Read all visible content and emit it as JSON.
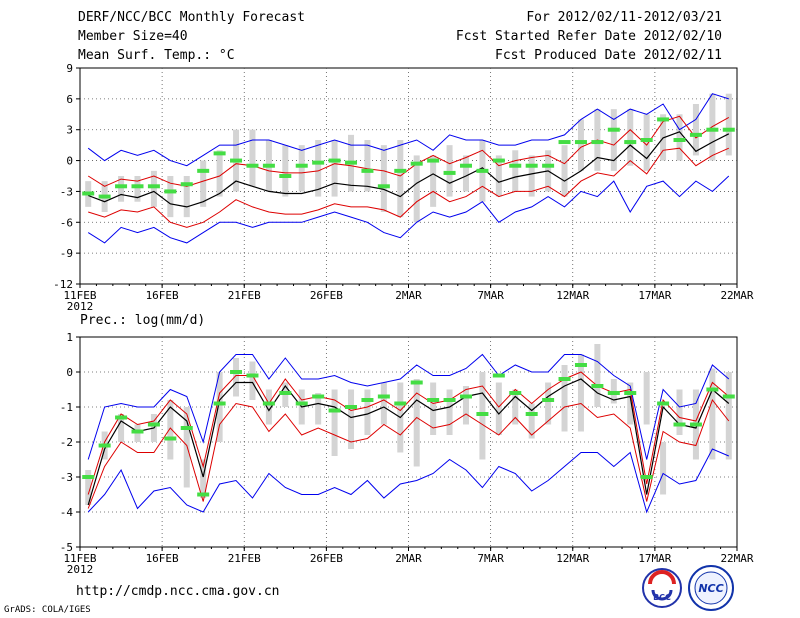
{
  "header": {
    "title": "DERF/NCC/BCC Monthly Forecast",
    "member_size": "Member Size=40",
    "variable": "Mean Surf. Temp.: °C",
    "period": "For 2012/02/11-2012/03/21",
    "start_date": "Fcst Started Refer Date 2012/02/10",
    "produced_date": "Fcst Produced Date 2012/02/11"
  },
  "footer": {
    "url": "http://cmdp.ncc.cma.gov.cn",
    "credit": "GrADS: COLA/IGES",
    "logo1_text": "BCC",
    "logo2_text": "NCC"
  },
  "colors": {
    "bar": "#d4d4d4",
    "green": "#44dd44",
    "mean": "#000000",
    "band": "#dd0000",
    "envelope": "#0000ee",
    "grid": "#555555"
  },
  "chart_data": [
    {
      "type": "line",
      "title": "Mean Surf. Temp.: °C",
      "x_ticks": [
        "11FEB",
        "16FEB",
        "21FEB",
        "26FEB",
        "2MAR",
        "7MAR",
        "12MAR",
        "17MAR",
        "22MAR"
      ],
      "x_year_label": "2012",
      "y_ticks": [
        "9",
        "6",
        "3",
        "0",
        "-3",
        "-6",
        "-9",
        "-12"
      ],
      "ylim": [
        -12,
        9
      ],
      "x": [
        1,
        2,
        3,
        4,
        5,
        6,
        7,
        8,
        9,
        10,
        11,
        12,
        13,
        14,
        15,
        16,
        17,
        18,
        19,
        20,
        21,
        22,
        23,
        24,
        25,
        26,
        27,
        28,
        29,
        30,
        31,
        32,
        33,
        34,
        35,
        36,
        37,
        38,
        39,
        40
      ],
      "bar_low": [
        -4.5,
        -5,
        -4,
        -4,
        -4.5,
        -5.5,
        -5.5,
        -4.5,
        -3.5,
        -3,
        -2.5,
        -3,
        -3.5,
        -3,
        -3.5,
        -3.5,
        -3,
        -3,
        -5,
        -5.5,
        -6,
        -4.5,
        -3.5,
        -3,
        -4,
        -3.5,
        -3,
        -3.5,
        -3,
        -3.5,
        -1,
        -1,
        -1,
        -0.5,
        -1,
        0,
        0,
        0.5,
        0,
        0.5
      ],
      "bar_high": [
        -2,
        -2,
        -1.5,
        -1.5,
        -1,
        -1.5,
        -1.5,
        0,
        1,
        3,
        3,
        2,
        1.5,
        1.5,
        2,
        2,
        2.5,
        2,
        1.5,
        2,
        0.5,
        0.5,
        1.5,
        0.5,
        2,
        0.5,
        1,
        0.5,
        1,
        1.5,
        4,
        5,
        5,
        5,
        4.5,
        4.5,
        4.5,
        5.5,
        6.5,
        6.5
      ],
      "green": [
        -3.2,
        -3.5,
        -2.5,
        -2.5,
        -2.5,
        -3,
        -2.3,
        -1,
        0.7,
        0,
        -0.5,
        -0.5,
        -1.5,
        -0.5,
        -0.2,
        0,
        -0.2,
        -1,
        -2.5,
        -1,
        -0.3,
        0,
        -1.2,
        -0.5,
        -1,
        0,
        -0.5,
        -0.5,
        -0.5,
        1.8,
        1.8,
        1.8,
        3,
        1.8,
        2,
        4,
        2,
        2.5,
        3,
        3
      ],
      "mean": [
        -3.4,
        -4,
        -3.3,
        -3.6,
        -3,
        -4.2,
        -4.5,
        -4,
        -3.2,
        -2,
        -2.5,
        -3,
        -3.2,
        -3.2,
        -2.8,
        -2.2,
        -2.4,
        -2.5,
        -2.8,
        -3.5,
        -2.2,
        -1.3,
        -2.2,
        -1.5,
        -0.7,
        -2.1,
        -1.6,
        -1.3,
        -1,
        -2,
        -1,
        0.3,
        0,
        1.5,
        0.2,
        2.2,
        2.8,
        0.9,
        1.8,
        2.6
      ],
      "upper": [
        -1.5,
        -2.5,
        -1.8,
        -2,
        -1.5,
        -2.2,
        -2.5,
        -2,
        -1.5,
        -0.3,
        -0.5,
        -1,
        -1.2,
        -1.2,
        -1,
        -0.3,
        -0.5,
        -0.8,
        -1,
        -1.5,
        -0.3,
        0.5,
        -0.3,
        0.3,
        1,
        -0.5,
        0,
        0.3,
        0.5,
        -0.3,
        1.3,
        2,
        1.5,
        3,
        1.5,
        3.8,
        4.3,
        2.2,
        3.3,
        4.2
      ],
      "lower": [
        -5,
        -5.5,
        -4.8,
        -5,
        -4.5,
        -6,
        -6.5,
        -6,
        -5,
        -3.8,
        -4.5,
        -5,
        -5.2,
        -5.2,
        -4.8,
        -4.2,
        -4.5,
        -4.5,
        -4.8,
        -5.5,
        -4,
        -3,
        -4,
        -3.5,
        -2.5,
        -3.5,
        -3,
        -3,
        -2.5,
        -3.5,
        -2,
        -1.2,
        -1.5,
        0,
        -1.3,
        1,
        1.2,
        -0.5,
        0.5,
        1.2
      ],
      "env_high": [
        1.2,
        0,
        1,
        0.5,
        1,
        0,
        -0.5,
        0.5,
        1.5,
        1.5,
        2,
        2,
        1.5,
        1,
        1.5,
        2,
        1.5,
        1.5,
        1,
        1.5,
        2,
        1,
        2.5,
        2,
        2,
        1.5,
        1.5,
        2,
        2,
        2.5,
        4,
        5,
        4,
        5,
        4.5,
        5.5,
        3,
        4,
        6.5,
        6
      ],
      "env_low": [
        -7,
        -8,
        -6.5,
        -7,
        -6.5,
        -7.5,
        -8,
        -7,
        -6,
        -6,
        -6.5,
        -6,
        -6,
        -6,
        -5.5,
        -5,
        -5.5,
        -6,
        -7,
        -7.5,
        -6,
        -5,
        -5.5,
        -5,
        -4,
        -6,
        -5,
        -4.5,
        -3.5,
        -4.5,
        -3,
        -3.5,
        -2,
        -5,
        -2.5,
        -2,
        -3.5,
        -2,
        -3,
        -1.5
      ]
    },
    {
      "type": "line",
      "title": "Prec.: log(mm/d)",
      "x_ticks": [
        "11FEB",
        "16FEB",
        "21FEB",
        "26FEB",
        "2MAR",
        "7MAR",
        "12MAR",
        "17MAR",
        "22MAR"
      ],
      "x_year_label": "2012",
      "y_ticks": [
        "1",
        "0",
        "-1",
        "-2",
        "-3",
        "-4",
        "-5"
      ],
      "ylim": [
        -5,
        1
      ],
      "x": [
        1,
        2,
        3,
        4,
        5,
        6,
        7,
        8,
        9,
        10,
        11,
        12,
        13,
        14,
        15,
        16,
        17,
        18,
        19,
        20,
        21,
        22,
        23,
        24,
        25,
        26,
        27,
        28,
        29,
        30,
        31,
        32,
        33,
        34,
        35,
        36,
        37,
        38,
        39,
        40
      ],
      "bar_low": [
        -3.8,
        -2.5,
        -2,
        -2,
        -2,
        -2.5,
        -3.3,
        -3.6,
        -2,
        -0.7,
        -0.8,
        -1.5,
        -1,
        -1.5,
        -1.5,
        -2.4,
        -2.2,
        -1.8,
        -1.5,
        -2.3,
        -2.7,
        -1.8,
        -1.8,
        -1.5,
        -2.5,
        -1.8,
        -1.5,
        -1.9,
        -1.5,
        -1.7,
        -1.7,
        -1,
        -0.9,
        -1.5,
        -1.5,
        -3.5,
        -1.8,
        -2.5,
        -2.5,
        -2.5
      ],
      "bar_high": [
        -2.8,
        -1.7,
        -1.2,
        -1.5,
        -1.2,
        -0.8,
        -1,
        -2.5,
        0,
        0.4,
        0.3,
        -0.5,
        -0.3,
        -0.5,
        -0.6,
        -0.5,
        -0.5,
        -0.5,
        -0.3,
        -0.3,
        -0.2,
        -0.3,
        -0.5,
        -0.4,
        0,
        -0.3,
        -0.5,
        -0.9,
        -0.3,
        0.2,
        0.5,
        0.8,
        -0.2,
        -0.3,
        0,
        -2,
        -0.5,
        -0.5,
        0.1,
        0
      ],
      "green": [
        -3,
        -2.1,
        -1.3,
        -1.7,
        -1.5,
        -1.9,
        -1.6,
        -3.5,
        -0.9,
        0,
        -0.1,
        -0.9,
        -0.6,
        -0.9,
        -0.7,
        -1.1,
        -1,
        -0.8,
        -0.7,
        -0.9,
        -0.3,
        -0.8,
        -0.8,
        -0.7,
        -1.2,
        -0.1,
        -0.6,
        -1.2,
        -0.8,
        -0.2,
        0.2,
        -0.4,
        -0.6,
        -0.6,
        -3,
        -0.9,
        -1.5,
        -1.5,
        -0.5,
        -0.7
      ],
      "mean": [
        -3.8,
        -2.2,
        -1.4,
        -1.7,
        -1.6,
        -1,
        -1.4,
        -3,
        -0.8,
        -0.3,
        -0.3,
        -1.1,
        -0.4,
        -1,
        -0.9,
        -1,
        -1.3,
        -1.2,
        -1,
        -1.3,
        -0.8,
        -1.1,
        -1,
        -0.7,
        -0.6,
        -1.2,
        -0.7,
        -1.1,
        -0.7,
        -0.4,
        -0.2,
        -0.6,
        -0.8,
        -0.7,
        -3.5,
        -1,
        -1.5,
        -1.6,
        -0.5,
        -0.9
      ],
      "upper": [
        -3.5,
        -2,
        -1.2,
        -1.5,
        -1.4,
        -0.8,
        -1.2,
        -2.7,
        -0.6,
        -0.1,
        -0.1,
        -0.9,
        -0.2,
        -0.8,
        -0.7,
        -0.8,
        -1.1,
        -1,
        -0.8,
        -1.1,
        -0.6,
        -0.9,
        -0.8,
        -0.5,
        -0.4,
        -1,
        -0.5,
        -0.9,
        -0.5,
        -0.2,
        0,
        -0.4,
        -0.6,
        -0.5,
        -3.2,
        -0.8,
        -1.3,
        -1.4,
        -0.3,
        -0.7
      ],
      "lower": [
        -3.9,
        -2.7,
        -2,
        -2.3,
        -2.3,
        -1.6,
        -2.1,
        -3.7,
        -1.5,
        -0.9,
        -1,
        -1.7,
        -1.2,
        -1.8,
        -1.6,
        -1.8,
        -2,
        -1.9,
        -1.5,
        -1.8,
        -1.3,
        -1.6,
        -1.5,
        -1.2,
        -1.5,
        -1.8,
        -1.3,
        -1.8,
        -1.4,
        -1,
        -0.9,
        -1.3,
        -1.2,
        -1.6,
        -3.7,
        -1.7,
        -2,
        -2.1,
        -0.8,
        -1.4
      ],
      "env_high": [
        -2.5,
        -1,
        -0.9,
        -1,
        -1,
        -0.5,
        -0.7,
        -2,
        0,
        0.5,
        0.5,
        -0.2,
        0.4,
        -0.2,
        -0.2,
        -0.1,
        -0.3,
        -0.4,
        -0.3,
        -0.2,
        0.2,
        -0.1,
        -0.1,
        0.1,
        0.5,
        -0.1,
        0.2,
        0,
        0,
        0.5,
        0.5,
        0.3,
        -0.1,
        -0.4,
        -2.5,
        -0.5,
        -1,
        -0.9,
        0.2,
        -0.2
      ],
      "env_low": [
        -4,
        -3.5,
        -2.8,
        -3.9,
        -3.4,
        -3.3,
        -3.8,
        -4,
        -3.2,
        -3.1,
        -3.6,
        -2.9,
        -3.3,
        -3.5,
        -3.5,
        -3.3,
        -3.5,
        -3.1,
        -3.6,
        -3.2,
        -3.1,
        -2.9,
        -2.5,
        -2.8,
        -3.3,
        -2.7,
        -2.9,
        -3.4,
        -3.1,
        -2.7,
        -2.3,
        -2.3,
        -2.7,
        -2.3,
        -4,
        -2.9,
        -3.2,
        -3.1,
        -2.2,
        -2.4
      ]
    }
  ]
}
